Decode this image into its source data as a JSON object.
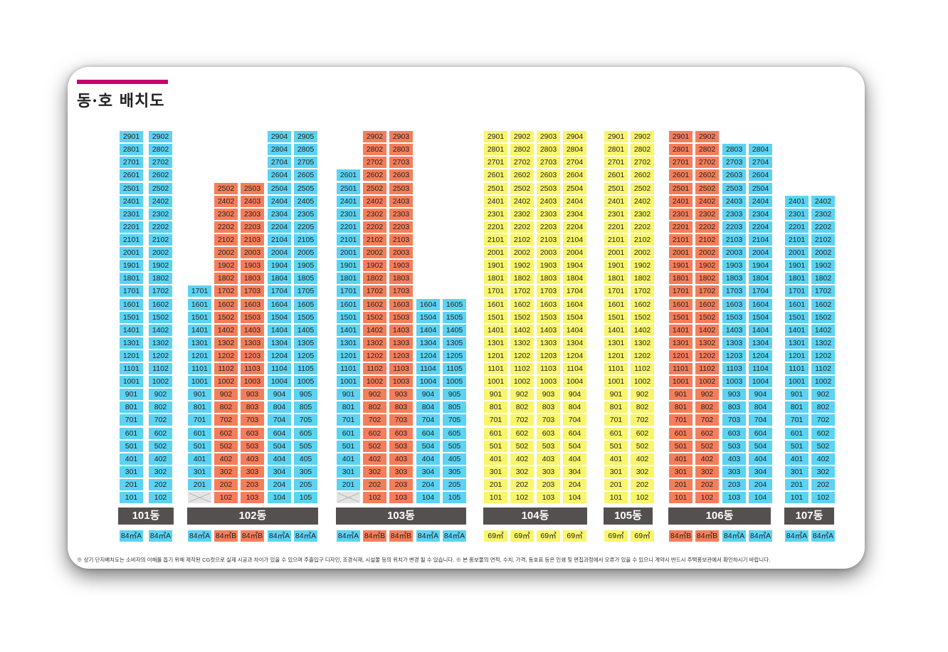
{
  "title": "동·호 배치도",
  "colors": {
    "accent": "#c9006b",
    "blue": "#5cd3f3",
    "orange": "#f57e5a",
    "yellow": "#f9f56c",
    "bar": "#555050",
    "blank": "#e4e4e4"
  },
  "buildings": [
    {
      "name": "101동",
      "columns": [
        {
          "line": 1,
          "top": 29,
          "bottom": 1,
          "color": "blue"
        },
        {
          "line": 2,
          "top": 29,
          "bottom": 1,
          "color": "blue"
        }
      ],
      "types": [
        "84㎡A",
        "84㎡A"
      ]
    },
    {
      "name": "102동",
      "columns": [
        {
          "line": 1,
          "top": 17,
          "bottom": 2,
          "color": "blue"
        },
        {
          "line": 2,
          "top": 25,
          "bottom": 1,
          "color": "orange"
        },
        {
          "line": 3,
          "top": 25,
          "bottom": 1,
          "color": "orange"
        },
        {
          "line": 4,
          "top": 29,
          "bottom": 1,
          "color": "blue"
        },
        {
          "line": 5,
          "top": 29,
          "bottom": 1,
          "color": "blue"
        }
      ],
      "types": [
        "84㎡A",
        "84㎡B",
        "84㎡B",
        "84㎡A",
        "84㎡A"
      ]
    },
    {
      "name": "103동",
      "columns": [
        {
          "line": 1,
          "top": 26,
          "bottom": 2,
          "color": "blue"
        },
        {
          "line": 2,
          "top": 29,
          "bottom": 1,
          "color": "orange"
        },
        {
          "line": 3,
          "top": 29,
          "bottom": 1,
          "color": "orange"
        },
        {
          "line": 4,
          "top": 16,
          "bottom": 1,
          "color": "blue"
        },
        {
          "line": 5,
          "top": 16,
          "bottom": 1,
          "color": "blue"
        }
      ],
      "types": [
        "84㎡A",
        "84㎡B",
        "84㎡B",
        "84㎡A",
        "84㎡A"
      ]
    },
    {
      "name": "104동",
      "columns": [
        {
          "line": 1,
          "top": 29,
          "bottom": 1,
          "color": "yellow"
        },
        {
          "line": 2,
          "top": 29,
          "bottom": 1,
          "color": "yellow"
        },
        {
          "line": 3,
          "top": 29,
          "bottom": 1,
          "color": "yellow"
        },
        {
          "line": 4,
          "top": 29,
          "bottom": 1,
          "color": "yellow"
        }
      ],
      "types": [
        "69㎡",
        "69㎡",
        "69㎡",
        "69㎡"
      ]
    },
    {
      "name": "105동",
      "columns": [
        {
          "line": 1,
          "top": 29,
          "bottom": 1,
          "color": "yellow"
        },
        {
          "line": 2,
          "top": 29,
          "bottom": 1,
          "color": "yellow"
        }
      ],
      "types": [
        "69㎡",
        "69㎡"
      ]
    },
    {
      "name": "106동",
      "columns": [
        {
          "line": 1,
          "top": 29,
          "bottom": 1,
          "color": "orange"
        },
        {
          "line": 2,
          "top": 29,
          "bottom": 1,
          "color": "orange"
        },
        {
          "line": 3,
          "top": 28,
          "bottom": 1,
          "color": "blue"
        },
        {
          "line": 4,
          "top": 28,
          "bottom": 1,
          "color": "blue"
        }
      ],
      "types": [
        "84㎡B",
        "84㎡B",
        "84㎡A",
        "84㎡A"
      ]
    },
    {
      "name": "107동",
      "columns": [
        {
          "line": 1,
          "top": 24,
          "bottom": 1,
          "color": "blue"
        },
        {
          "line": 2,
          "top": 24,
          "bottom": 1,
          "color": "blue"
        }
      ],
      "types": [
        "84㎡A",
        "84㎡A"
      ]
    }
  ],
  "footnote": "※ 상기 단지배치도는 소비자의 이해를 돕기 위해 제작된 CG컷으로 실제 시공과 차이가 있을 수 있으며 주출입구 디자인, 조경식재, 시설물 등의 위치가 변경 될 수 있습니다. ※ 본 홍보물의 면적, 수치, 가격, 동호표 등은 인쇄 및 편집과정에서 오류가 있을 수 있으니 계약시 반드시 주택홍보관에서 확인하시기 바랍니다."
}
